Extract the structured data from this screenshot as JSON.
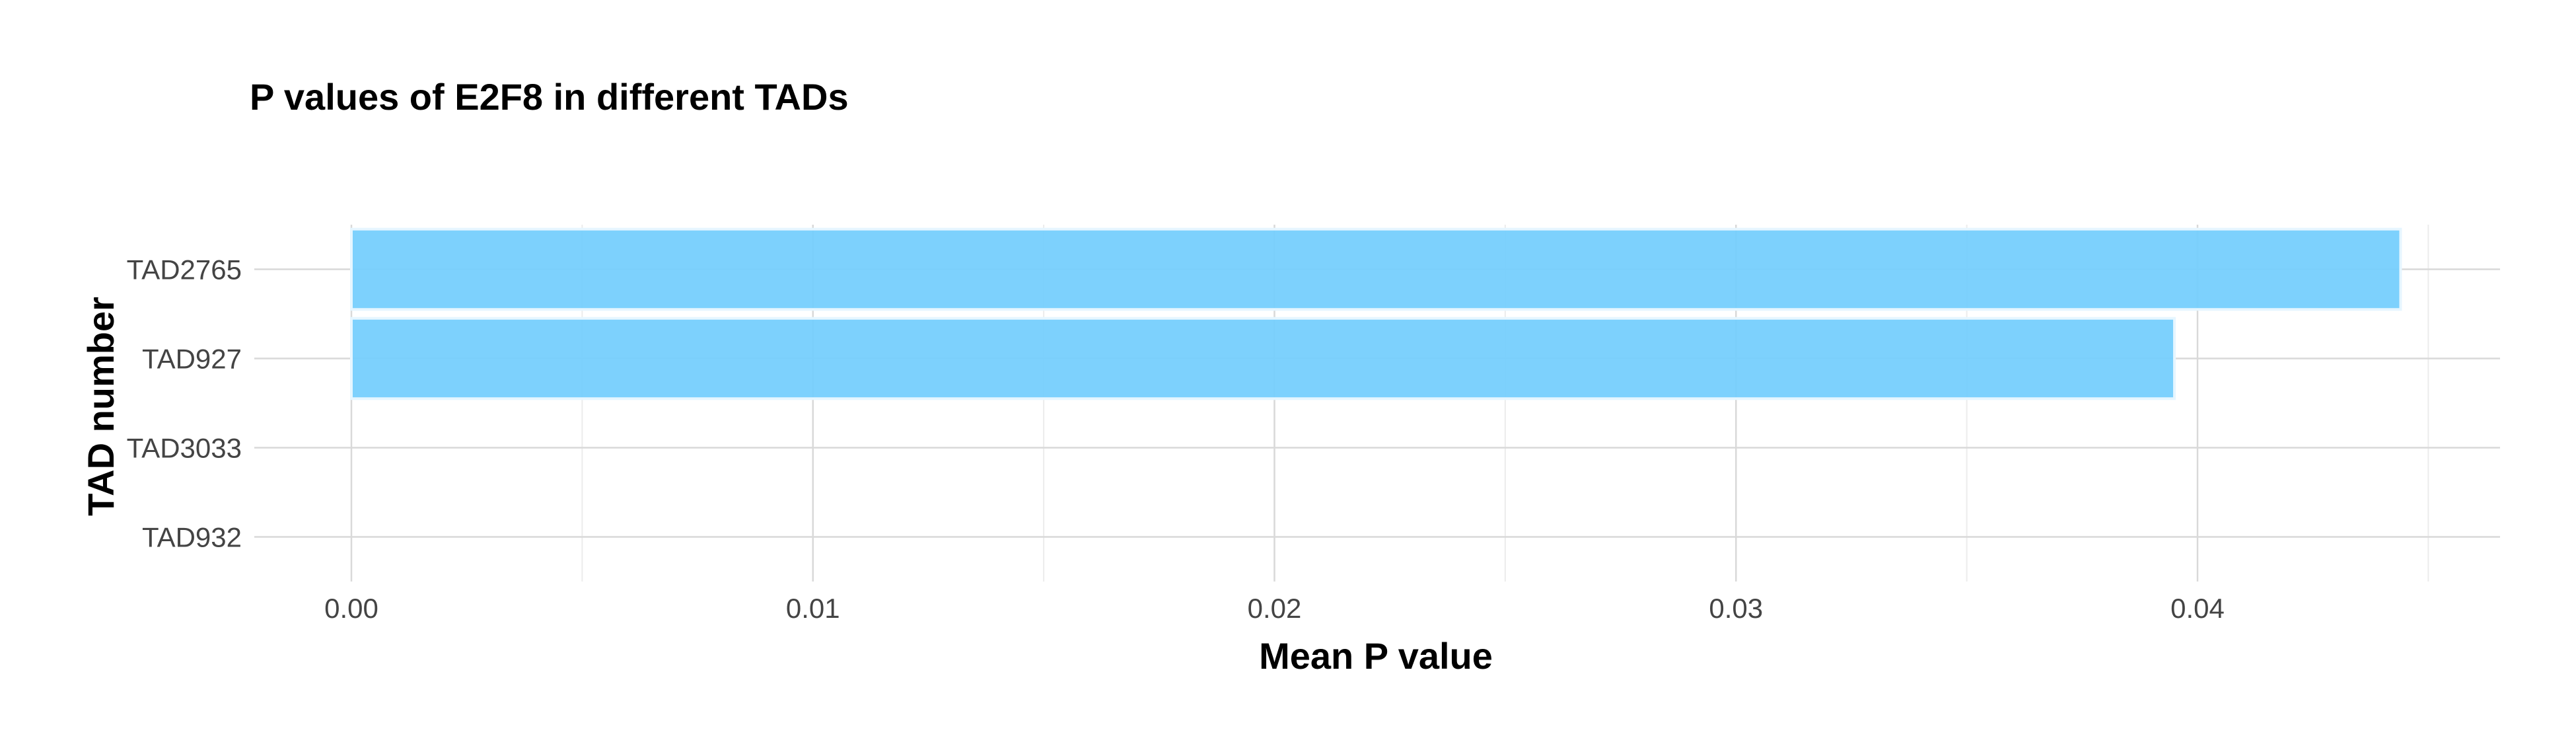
{
  "chart_data": {
    "type": "bar",
    "orientation": "horizontal",
    "title": "P values of E2F8 in different TADs",
    "xlabel": "Mean P value",
    "ylabel": "TAD number",
    "categories": [
      "TAD2765",
      "TAD927",
      "TAD3033",
      "TAD932"
    ],
    "values": [
      0.0444,
      0.0395,
      0.0,
      0.0
    ],
    "xlim": [
      -0.002,
      0.0466
    ],
    "x_ticks": [
      0.0,
      0.01,
      0.02,
      0.03,
      0.04
    ],
    "x_tick_labels": [
      "0.00",
      "0.01",
      "0.02",
      "0.03",
      "0.04"
    ],
    "grid": true,
    "bar_color": "#76CFFD",
    "legend": "none"
  }
}
